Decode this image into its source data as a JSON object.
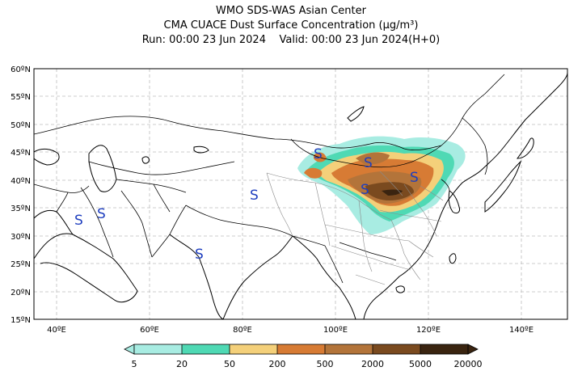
{
  "header": {
    "line1": "WMO SDS-WAS Asian Center",
    "line2": "CMA CUACE Dust Surface Concentration (μg/m³)",
    "line3_run": "Run: 00:00 23 Jun 2024",
    "line3_valid": "Valid: 00:00 23 Jun 2024(H+0)"
  },
  "map": {
    "lon_range": [
      35,
      150
    ],
    "lat_range": [
      15,
      60
    ],
    "lat_labels": [
      "60ºN",
      "55ºN",
      "50ºN",
      "45ºN",
      "40ºN",
      "35ºN",
      "30ºN",
      "25ºN",
      "20ºN",
      "15ºN"
    ],
    "lon_labels": [
      "40ºE",
      "60ºE",
      "80ºE",
      "100ºE",
      "120ºE",
      "140ºE"
    ],
    "marker_symbol": "S",
    "marker_color": "#1f3fbf"
  },
  "colorbar": {
    "labels": [
      "5",
      "20",
      "50",
      "200",
      "500",
      "2000",
      "5000",
      "20000"
    ],
    "colors": [
      "#a8ece2",
      "#4fd9b4",
      "#f4d07a",
      "#d77b34",
      "#b3743a",
      "#7a4a1f",
      "#3a2410"
    ]
  }
}
